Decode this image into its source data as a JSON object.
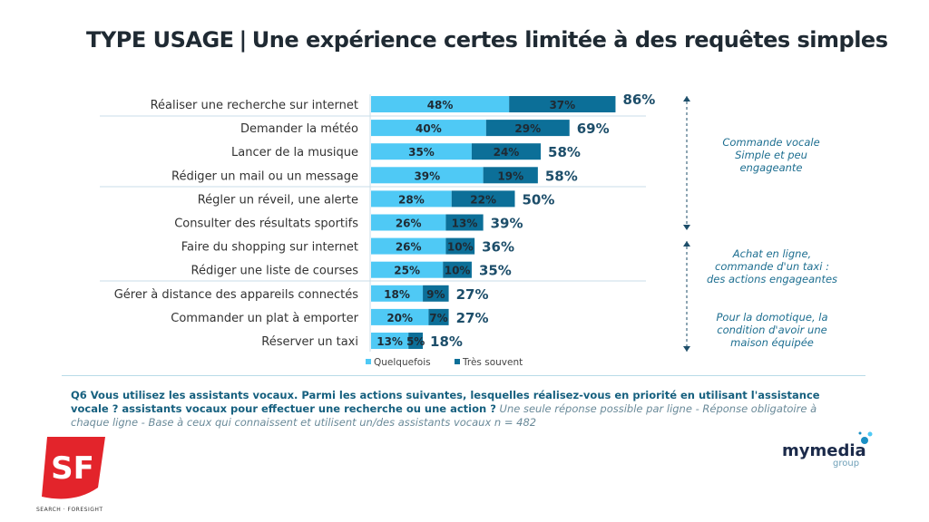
{
  "title": {
    "left": "TYPE USAGE",
    "separator": "|",
    "right": "Une expérience certes limitée à des requêtes simples"
  },
  "chart_data": {
    "type": "bar",
    "orientation": "horizontal-stacked",
    "categories": [
      "Réaliser une recherche sur internet",
      "Demander la météo",
      "Lancer de la musique",
      "Rédiger un mail ou un message",
      "Régler un réveil, une alerte",
      "Consulter des résultats sportifs",
      "Faire du shopping sur internet",
      "Rédiger une liste de courses",
      "Gérer à distance des appareils connectés",
      "Commander un plat à emporter",
      "Réserver un taxi"
    ],
    "series": [
      {
        "name": "Quelquefois",
        "color": "#4fc9f5",
        "values": [
          48,
          40,
          35,
          39,
          28,
          26,
          26,
          25,
          18,
          20,
          13
        ]
      },
      {
        "name": "Très souvent",
        "color": "#0c6f98",
        "values": [
          37,
          29,
          24,
          19,
          22,
          13,
          10,
          10,
          9,
          7,
          5
        ]
      }
    ],
    "totals": [
      86,
      69,
      58,
      58,
      50,
      39,
      36,
      35,
      27,
      27,
      18
    ],
    "unit": "%",
    "legend": "bottom",
    "grid": false
  },
  "notes": {
    "group1": "Commande vocale Simple et peu engageante",
    "group2": "Achat en ligne, commande d'un taxi : des actions engageantes",
    "group3": "Pour la domotique, la condition d'avoir une maison équipée"
  },
  "question": {
    "bold": "Q6 Vous utilisez les assistants vocaux. Parmi les actions suivantes, lesquelles réalisez-vous en priorité en utilisant l'assistance vocale ? assistants vocaux pour effectuer une recherche ou une action ?",
    "italic": "Une seule réponse possible par ligne - Réponse obligatoire à chaque ligne - Base à ceux qui connaissent et utilisent un/des assistants vocaux n = 482"
  },
  "logos": {
    "sf": "SF",
    "sf_caption": "SEARCH · FORESIGHT",
    "mymedia": "mymedia",
    "mymedia_sub": "group"
  }
}
